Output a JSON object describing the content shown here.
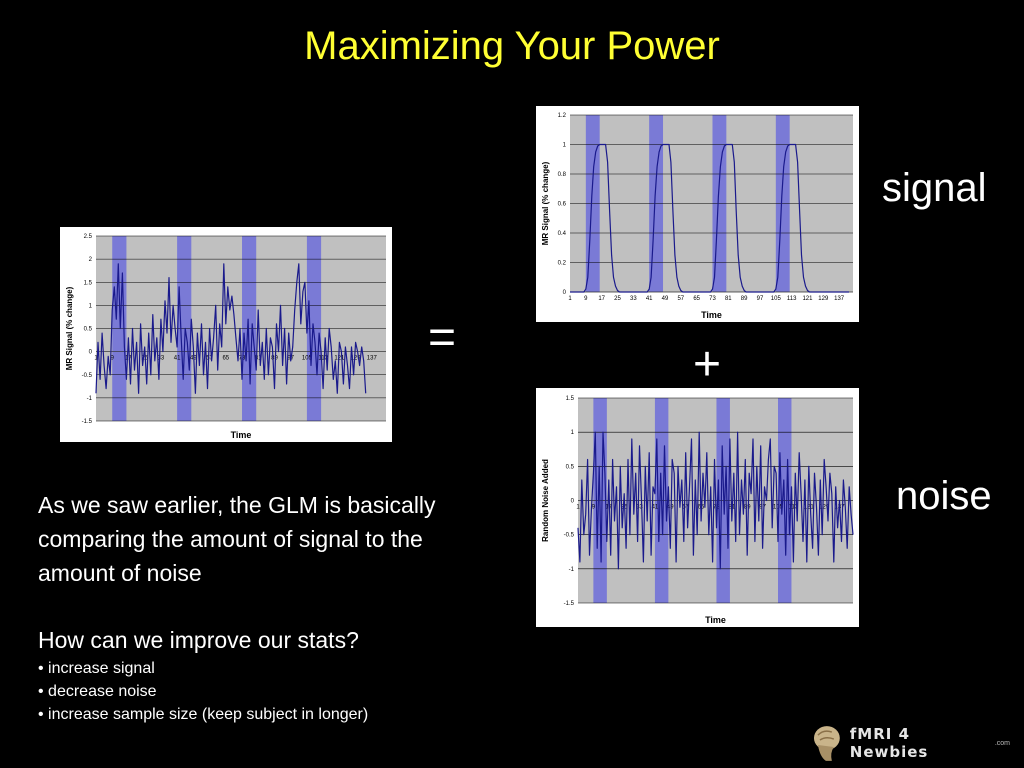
{
  "slide": {
    "title": "Maximizing Your Power",
    "equals": "=",
    "plus": "+",
    "signal_label": "signal",
    "noise_label": "noise",
    "paragraph_1": "As we saw earlier, the GLM is basically comparing the amount of signal to the amount of noise",
    "paragraph_2": "How can we improve our stats?",
    "bullets": [
      "• increase signal",
      "• decrease noise",
      "• increase sample size (keep subject in longer)"
    ],
    "logo_text": "fMRI 4 Newbies",
    "logo_suffix": ".com"
  },
  "colors": {
    "title": "#ffff33",
    "plot_bg": "#c0c0c0",
    "block_fill": "#7a7ad6",
    "line": "#1a1a8c"
  },
  "chart_data": [
    {
      "id": "combined",
      "type": "line",
      "xlabel": "Time",
      "ylabel": "MR Signal (% change)",
      "xlim": [
        1,
        144
      ],
      "ylim": [
        -1.5,
        2.5
      ],
      "yticks": [
        "2.5",
        "2",
        "1.5",
        "1",
        "0.5",
        "0",
        "-0.5",
        "-1",
        "-1.5"
      ],
      "ytick_values": [
        2.5,
        2,
        1.5,
        1,
        0.5,
        0,
        -0.5,
        -1,
        -1.5
      ],
      "xtick_labels": [
        "1",
        "9",
        "17",
        "25",
        "33",
        "41",
        "49",
        "57",
        "65",
        "73",
        "81",
        "89",
        "97",
        "105",
        "113",
        "121",
        "129",
        "137"
      ],
      "xtick_values": [
        1,
        9,
        17,
        25,
        33,
        41,
        49,
        57,
        65,
        73,
        81,
        89,
        97,
        105,
        113,
        121,
        129,
        137
      ],
      "blocks": [
        [
          9,
          16
        ],
        [
          41,
          48
        ],
        [
          73,
          80
        ],
        [
          105,
          112
        ]
      ],
      "grid": true,
      "values": [
        -0.9,
        0.2,
        -0.6,
        0.4,
        -0.3,
        -0.8,
        -0.1,
        -0.5,
        0.9,
        1.4,
        0.7,
        1.9,
        0.5,
        1.7,
        0.1,
        -0.6,
        0.3,
        -0.7,
        0.5,
        -0.4,
        0.2,
        -0.9,
        0.6,
        -0.3,
        0.1,
        -0.7,
        0.4,
        -0.5,
        0.8,
        -0.2,
        0.3,
        -0.6,
        0.7,
        0.0,
        1.1,
        0.4,
        1.6,
        0.2,
        1.0,
        0.5,
        0.1,
        1.4,
        0.3,
        -0.6,
        0.5,
        0.2,
        -0.4,
        0.7,
        0.1,
        -0.9,
        0.4,
        -0.3,
        0.6,
        -0.5,
        0.2,
        -0.8,
        0.5,
        -0.2,
        0.3,
        1.0,
        -0.4,
        0.6,
        0.1,
        1.9,
        0.6,
        1.4,
        0.9,
        1.2,
        0.8,
        0.3,
        -0.2,
        0.5,
        -0.6,
        0.4,
        -0.2,
        0.7,
        -0.7,
        0.6,
        0.1,
        -0.4,
        0.9,
        -0.3,
        0.2,
        -0.6,
        0.5,
        -0.5,
        0.3,
        0.1,
        -0.8,
        0.6,
        0.0,
        1.0,
        -0.3,
        0.5,
        -0.7,
        0.4,
        -0.2,
        0.1,
        0.9,
        1.5,
        1.9,
        0.6,
        1.3,
        1.5,
        0.4,
        1.1,
        -0.3,
        0.6,
        0.2,
        -0.5,
        0.4,
        0.0,
        -0.8,
        0.3,
        -0.4,
        0.5,
        0.1,
        -0.6,
        -0.2,
        -0.9,
        0.2,
        0.0,
        -0.7,
        0.1,
        -0.3,
        -0.8,
        0.1,
        -0.5,
        0.2,
        0.0,
        -0.3,
        0.1,
        -0.2,
        -0.9
      ]
    },
    {
      "id": "signal",
      "type": "line",
      "xlabel": "Time",
      "ylabel": "MR Signal (% change)",
      "xlim": [
        1,
        144
      ],
      "ylim": [
        0,
        1.2
      ],
      "yticks": [
        "1.2",
        "1",
        "0.8",
        "0.6",
        "0.4",
        "0.2",
        "0"
      ],
      "ytick_values": [
        1.2,
        1,
        0.8,
        0.6,
        0.4,
        0.2,
        0
      ],
      "xtick_labels": [
        "1",
        "9",
        "17",
        "25",
        "33",
        "41",
        "49",
        "57",
        "65",
        "73",
        "81",
        "89",
        "97",
        "105",
        "113",
        "121",
        "129",
        "137"
      ],
      "xtick_values": [
        1,
        9,
        17,
        25,
        33,
        41,
        49,
        57,
        65,
        73,
        81,
        89,
        97,
        105,
        113,
        121,
        129,
        137
      ],
      "blocks": [
        [
          9,
          16
        ],
        [
          41,
          48
        ],
        [
          73,
          80
        ],
        [
          105,
          112
        ]
      ],
      "grid": true,
      "values": [
        0,
        0,
        0,
        0,
        0,
        0,
        0,
        0,
        0.02,
        0.1,
        0.35,
        0.65,
        0.85,
        0.95,
        0.99,
        1,
        1,
        1,
        1,
        0.88,
        0.55,
        0.25,
        0.1,
        0.04,
        0.01,
        0,
        0,
        0,
        0,
        0,
        0,
        0,
        0,
        0,
        0,
        0,
        0,
        0,
        0,
        0,
        0.02,
        0.1,
        0.35,
        0.65,
        0.85,
        0.95,
        0.99,
        1,
        1,
        1,
        1,
        0.88,
        0.55,
        0.25,
        0.1,
        0.04,
        0.01,
        0,
        0,
        0,
        0,
        0,
        0,
        0,
        0,
        0,
        0,
        0,
        0,
        0,
        0,
        0,
        0.02,
        0.1,
        0.35,
        0.65,
        0.85,
        0.95,
        0.99,
        1,
        1,
        1,
        1,
        0.88,
        0.55,
        0.25,
        0.1,
        0.04,
        0.01,
        0,
        0,
        0,
        0,
        0,
        0,
        0,
        0,
        0,
        0,
        0,
        0,
        0,
        0,
        0,
        0.02,
        0.1,
        0.35,
        0.65,
        0.85,
        0.95,
        0.99,
        1,
        1,
        1,
        1,
        0.88,
        0.55,
        0.25,
        0.1,
        0.04,
        0.01,
        0,
        0,
        0,
        0,
        0,
        0,
        0,
        0,
        0,
        0,
        0,
        0,
        0,
        0,
        0,
        0,
        0,
        0,
        0,
        0,
        0
      ]
    },
    {
      "id": "noise",
      "type": "line",
      "xlabel": "Time",
      "ylabel": "Random Noise Added",
      "xlim": [
        1,
        144
      ],
      "ylim": [
        -1.5,
        1.5
      ],
      "yticks": [
        "1.5",
        "1",
        "0.5",
        "0",
        "-0.5",
        "-1",
        "-1.5"
      ],
      "ytick_values": [
        1.5,
        1,
        0.5,
        0,
        -0.5,
        -1,
        -1.5
      ],
      "xtick_labels": [
        "1",
        "9",
        "17",
        "25",
        "33",
        "41",
        "49",
        "57",
        "65",
        "73",
        "81",
        "89",
        "97",
        "105",
        "113",
        "121",
        "129",
        "137"
      ],
      "xtick_values": [
        1,
        9,
        17,
        25,
        33,
        41,
        49,
        57,
        65,
        73,
        81,
        89,
        97,
        105,
        113,
        121,
        129,
        137
      ],
      "blocks": [
        [
          9,
          16
        ],
        [
          41,
          48
        ],
        [
          73,
          80
        ],
        [
          105,
          112
        ]
      ],
      "grid": true,
      "values": [
        -0.4,
        -0.9,
        0.3,
        -0.5,
        -0.2,
        0.6,
        -0.8,
        -0.1,
        0.4,
        1.0,
        -0.7,
        0.5,
        -0.9,
        1.0,
        0.4,
        -0.6,
        0.3,
        -0.8,
        0.6,
        -0.3,
        0.2,
        -1.0,
        0.5,
        -0.4,
        0.1,
        -0.7,
        0.6,
        -0.5,
        0.9,
        -0.2,
        0.4,
        -0.6,
        0.8,
        0.0,
        -0.9,
        0.5,
        -0.3,
        0.7,
        -0.8,
        0.2,
        0.1,
        0.9,
        -0.6,
        0.4,
        -0.5,
        0.8,
        -0.3,
        0.2,
        -0.7,
        0.6,
        0.4,
        -0.9,
        0.5,
        -0.1,
        0.3,
        -0.6,
        0.7,
        -0.4,
        0.2,
        0.9,
        -0.8,
        0.3,
        -0.5,
        1.0,
        -0.3,
        0.4,
        -0.1,
        0.7,
        -0.5,
        0.2,
        -0.9,
        0.6,
        -0.4,
        0.3,
        -1.0,
        0.8,
        -0.2,
        0.5,
        -0.7,
        0.9,
        -0.3,
        0.4,
        -0.6,
        1.0,
        -0.5,
        0.3,
        -0.2,
        0.6,
        -0.8,
        0.4,
        0.1,
        0.9,
        -0.6,
        0.5,
        -0.3,
        0.8,
        -0.7,
        0.2,
        0.0,
        0.6,
        0.9,
        -0.4,
        0.5,
        0.4,
        -0.6,
        0.7,
        -0.2,
        0.3,
        -0.8,
        0.6,
        -0.5,
        0.2,
        -0.9,
        0.4,
        -0.3,
        0.7,
        0.1,
        -0.6,
        0.3,
        -0.9,
        0.5,
        -0.2,
        -0.7,
        0.4,
        -0.1,
        -0.8,
        0.3,
        -0.5,
        0.6,
        0.2,
        -0.3,
        0.4,
        0.1,
        -0.9,
        0.2,
        -0.4,
        0.0,
        -0.6,
        0.3,
        -0.1,
        -0.7,
        0.2,
        -0.2,
        -0.5
      ]
    }
  ]
}
